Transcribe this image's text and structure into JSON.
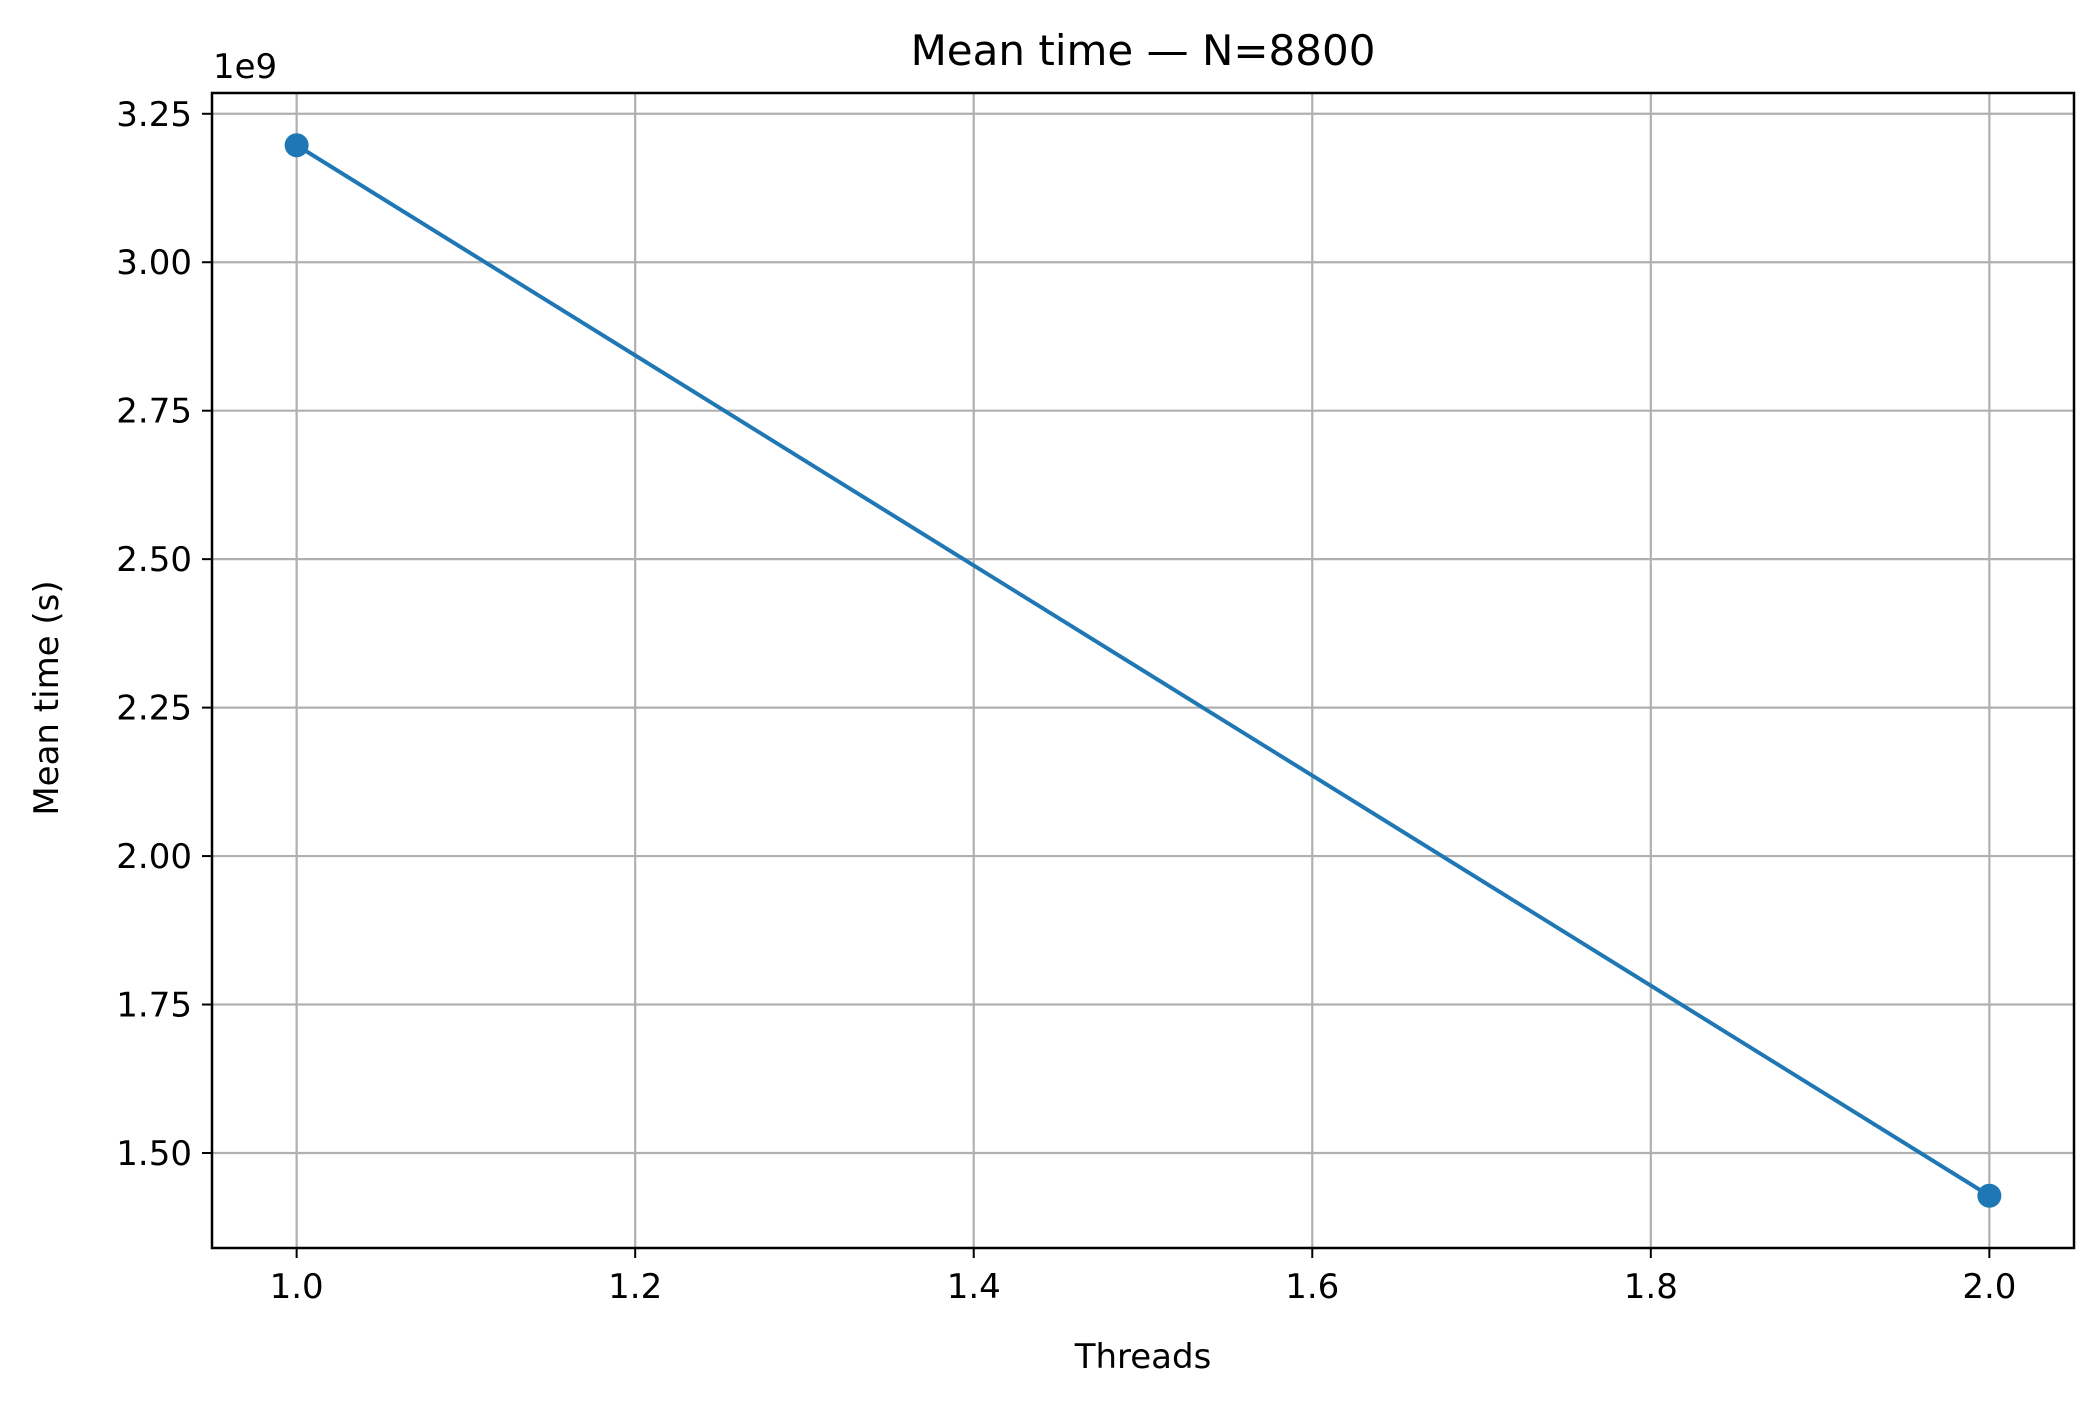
{
  "chart_data": {
    "type": "line",
    "title": "Mean time — N=8800",
    "xlabel": "Threads",
    "ylabel": "Mean time (s)",
    "y_offset_label": "1e9",
    "xlim": [
      0.95,
      2.05
    ],
    "ylim": [
      1.34,
      3.285
    ],
    "x_ticks": [
      1.0,
      1.2,
      1.4,
      1.6,
      1.8,
      2.0
    ],
    "x_tick_labels": [
      "1.0",
      "1.2",
      "1.4",
      "1.6",
      "1.8",
      "2.0"
    ],
    "y_ticks": [
      1.5,
      1.75,
      2.0,
      2.25,
      2.5,
      2.75,
      3.0,
      3.25
    ],
    "y_tick_labels": [
      "1.50",
      "1.75",
      "2.00",
      "2.25",
      "2.50",
      "2.75",
      "3.00",
      "3.25"
    ],
    "grid": true,
    "series": [
      {
        "color": "#1f77b4",
        "marker": "circle",
        "x": [
          1.0,
          2.0
        ],
        "y": [
          3.197,
          1.428
        ]
      }
    ]
  }
}
